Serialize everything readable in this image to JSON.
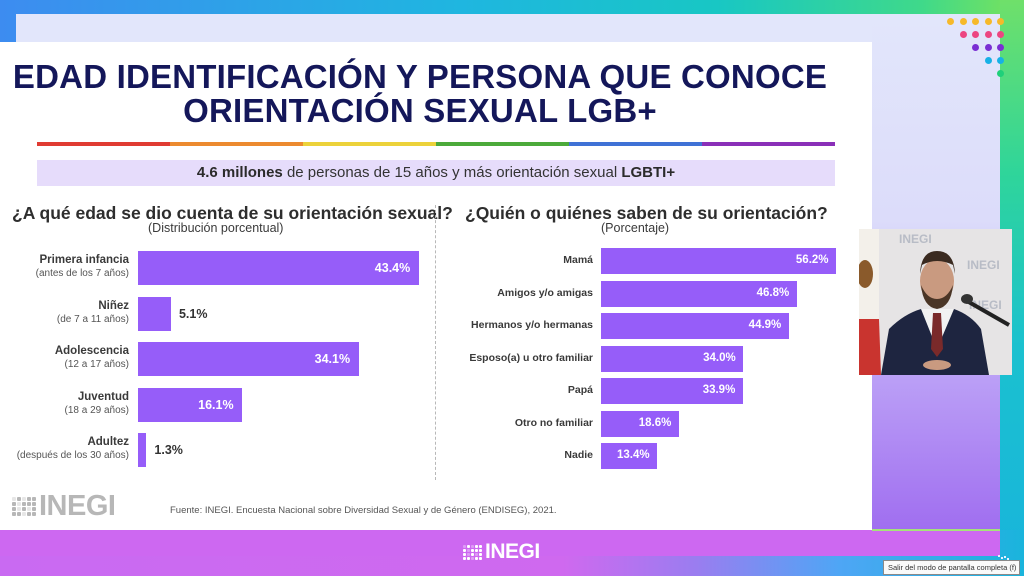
{
  "slide": {
    "title_line1": "EDAD IDENTIFICACIÓN Y PERSONA QUE CONOCE",
    "title_line2": "ORIENTACIÓN SEXUAL LGB+",
    "rainbow_colors": [
      "#e03b32",
      "#ec8a2f",
      "#ecd23a",
      "#4caa3a",
      "#3f72d6",
      "#8a2fb8"
    ],
    "subtitle_bold": "4.6 millones",
    "subtitle_text": " de personas de 15 años y más orientación sexual ",
    "subtitle_bold2": "LGBTI+",
    "source": "Fuente:  INEGI. Encuesta Nacional sobre Diversidad Sexual y de Género (ENDISEG), 2021.",
    "logo_text": "INEGI",
    "dot_colors": {
      "yellow": "#f6b92a",
      "pink": "#ec4581",
      "purple": "#7a2ed3",
      "blue": "#17b1e6",
      "green": "#1fd07a"
    }
  },
  "broadcast": {
    "bottom_logo": "INEGI",
    "tooltip": "Salir del modo de pantalla completa (f)",
    "video_watermark": "INEGI"
  },
  "chart_data": [
    {
      "type": "bar",
      "orientation": "horizontal",
      "title": "¿A qué edad se dio cuenta de su orientación sexual?",
      "subtitle": "(Distribución porcentual)",
      "categories": [
        "Primera infancia",
        "Niñez",
        "Adolescencia",
        "Juventud",
        "Adultez"
      ],
      "category_notes": [
        "(antes de los 7 años)",
        "(de 7 a 11 años)",
        "(12 a 17 años)",
        "(18 a 29 años)",
        "(después de los 30 años)"
      ],
      "values": [
        43.4,
        5.1,
        34.1,
        16.1,
        1.3
      ],
      "value_labels": [
        "43.4%",
        "5.1%",
        "34.1%",
        "16.1%",
        "1.3%"
      ],
      "unit": "%",
      "color": "#965df9",
      "grid": false
    },
    {
      "type": "bar",
      "orientation": "horizontal",
      "title": "¿Quién o quiénes saben de su orientación?",
      "subtitle": "(Porcentaje)",
      "categories": [
        "Mamá",
        "Amigos y/o amigas",
        "Hermanos y/o hermanas",
        "Esposo(a) u otro familiar",
        "Papá",
        "Otro no familiar",
        "Nadie"
      ],
      "values": [
        56.2,
        46.8,
        44.9,
        34.0,
        33.9,
        18.6,
        13.4
      ],
      "value_labels": [
        "56.2%",
        "46.8%",
        "44.9%",
        "34.0%",
        "33.9%",
        "18.6%",
        "13.4%"
      ],
      "unit": "%",
      "color": "#965df9",
      "grid": false
    }
  ]
}
